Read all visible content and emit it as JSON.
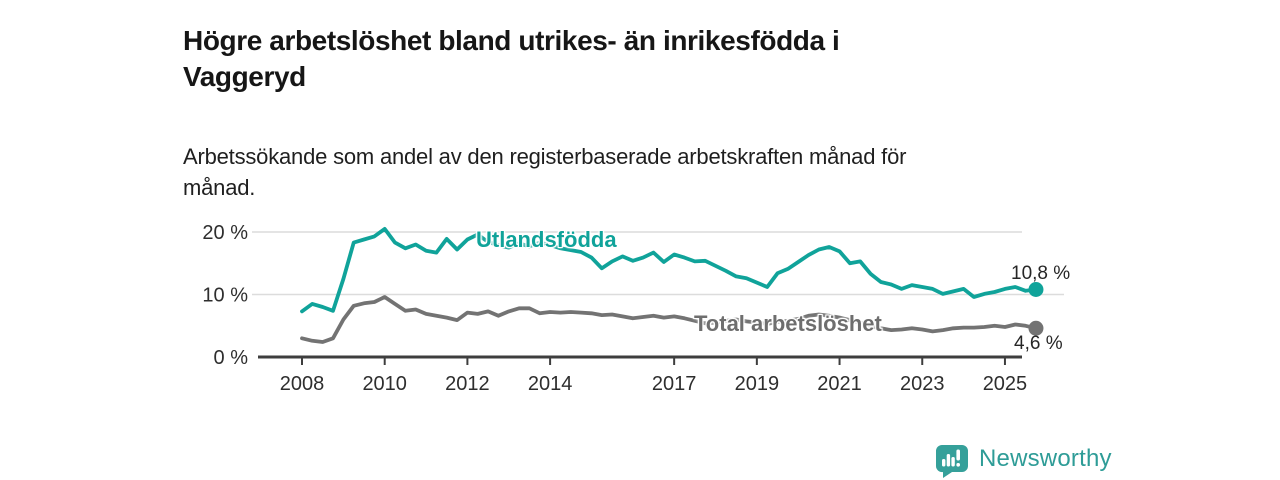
{
  "header": {
    "title_lines": [
      "Högre arbetslöshet bland utrikes- än inrikesfödda i",
      "Vaggeryd"
    ],
    "subtitle_lines": [
      "Arbetssökande som andel av den registerbaserade arbetskraften månad för",
      "månad."
    ]
  },
  "colors": {
    "series_utlandsfodda": "#10A39A",
    "series_total": "#737373",
    "axis_line": "#3E3E3E",
    "grid_line": "#DCDCDC",
    "tick_label": "#2E2E2E",
    "title": "#161616",
    "brand_teal": "#2E9C97"
  },
  "chart_data": {
    "type": "line",
    "title": "Högre arbetslöshet bland utrikes- än inrikesfödda i Vaggeryd",
    "subtitle": "Arbetssökande som andel av den registerbaserade arbetskraften månad för månad.",
    "xlabel": "",
    "ylabel": "",
    "grid": "horizontal",
    "legend_position": "inline-labels",
    "xlim": [
      2008,
      2025.75
    ],
    "ylim": [
      0,
      21.5
    ],
    "x": [
      2008.0,
      2008.25,
      2008.5,
      2008.75,
      2009.0,
      2009.25,
      2009.5,
      2009.75,
      2010.0,
      2010.25,
      2010.5,
      2010.75,
      2011.0,
      2011.25,
      2011.5,
      2011.75,
      2012.0,
      2012.25,
      2012.5,
      2012.75,
      2013.0,
      2013.25,
      2013.5,
      2013.75,
      2014.0,
      2014.25,
      2014.5,
      2014.75,
      2015.0,
      2015.25,
      2015.5,
      2015.75,
      2016.0,
      2016.25,
      2016.5,
      2016.75,
      2017.0,
      2017.25,
      2017.5,
      2017.75,
      2018.0,
      2018.25,
      2018.5,
      2018.75,
      2019.0,
      2019.25,
      2019.5,
      2019.75,
      2020.0,
      2020.25,
      2020.5,
      2020.75,
      2021.0,
      2021.25,
      2021.5,
      2021.75,
      2022.0,
      2022.25,
      2022.5,
      2022.75,
      2023.0,
      2023.25,
      2023.5,
      2023.75,
      2024.0,
      2024.25,
      2024.5,
      2024.75,
      2025.0,
      2025.25,
      2025.5,
      2025.75
    ],
    "series": [
      {
        "name": "Utlandsfödda",
        "color": "#10A39A",
        "end_label": "10,8 %",
        "end_value": 10.8,
        "values": [
          7.3,
          8.5,
          8.0,
          7.4,
          12.5,
          18.3,
          18.8,
          19.3,
          20.5,
          18.3,
          17.4,
          18.0,
          17.0,
          16.7,
          18.9,
          17.2,
          18.8,
          19.6,
          18.4,
          17.9,
          17.5,
          18.2,
          17.7,
          18.3,
          17.9,
          17.4,
          17.1,
          16.8,
          15.9,
          14.2,
          15.3,
          16.1,
          15.4,
          15.9,
          16.7,
          15.2,
          16.4,
          15.9,
          15.3,
          15.4,
          14.6,
          13.8,
          12.9,
          12.6,
          11.9,
          11.2,
          13.4,
          14.1,
          15.2,
          16.3,
          17.2,
          17.6,
          16.9,
          15.0,
          15.3,
          13.3,
          12.0,
          11.6,
          10.9,
          11.5,
          11.2,
          10.9,
          10.1,
          10.5,
          10.9,
          9.6,
          10.1,
          10.4,
          10.9,
          11.2,
          10.6,
          10.8
        ]
      },
      {
        "name": "Total arbetslöshet",
        "color": "#737373",
        "end_label": "4,6 %",
        "end_value": 4.6,
        "values": [
          3.0,
          2.6,
          2.4,
          3.0,
          6.0,
          8.2,
          8.6,
          8.8,
          9.6,
          8.5,
          7.4,
          7.6,
          6.9,
          6.6,
          6.3,
          5.9,
          7.1,
          6.9,
          7.3,
          6.6,
          7.3,
          7.8,
          7.8,
          7.0,
          7.2,
          7.1,
          7.2,
          7.1,
          7.0,
          6.7,
          6.8,
          6.5,
          6.2,
          6.4,
          6.6,
          6.3,
          6.5,
          6.2,
          5.8,
          5.4,
          5.5,
          5.8,
          6.0,
          5.7,
          5.5,
          5.3,
          5.6,
          5.8,
          6.1,
          6.6,
          6.8,
          6.6,
          6.3,
          5.9,
          5.5,
          5.0,
          4.6,
          4.3,
          4.4,
          4.6,
          4.4,
          4.1,
          4.3,
          4.6,
          4.7,
          4.7,
          4.8,
          5.0,
          4.8,
          5.2,
          5.0,
          4.6
        ]
      }
    ],
    "x_ticks": [
      {
        "value": 2008,
        "label": "2008"
      },
      {
        "value": 2010,
        "label": "2010"
      },
      {
        "value": 2012,
        "label": "2012"
      },
      {
        "value": 2014,
        "label": "2014"
      },
      {
        "value": 2017,
        "label": "2017"
      },
      {
        "value": 2019,
        "label": "2019"
      },
      {
        "value": 2021,
        "label": "2021"
      },
      {
        "value": 2023,
        "label": "2023"
      },
      {
        "value": 2025,
        "label": "2025"
      }
    ],
    "y_ticks": [
      {
        "value": 0,
        "label": "0 %"
      },
      {
        "value": 10,
        "label": "10 %"
      },
      {
        "value": 20,
        "label": "20 %"
      }
    ]
  },
  "footer": {
    "brand": "Newsworthy",
    "brand_icon": "bar-chart-speech-bubble"
  }
}
